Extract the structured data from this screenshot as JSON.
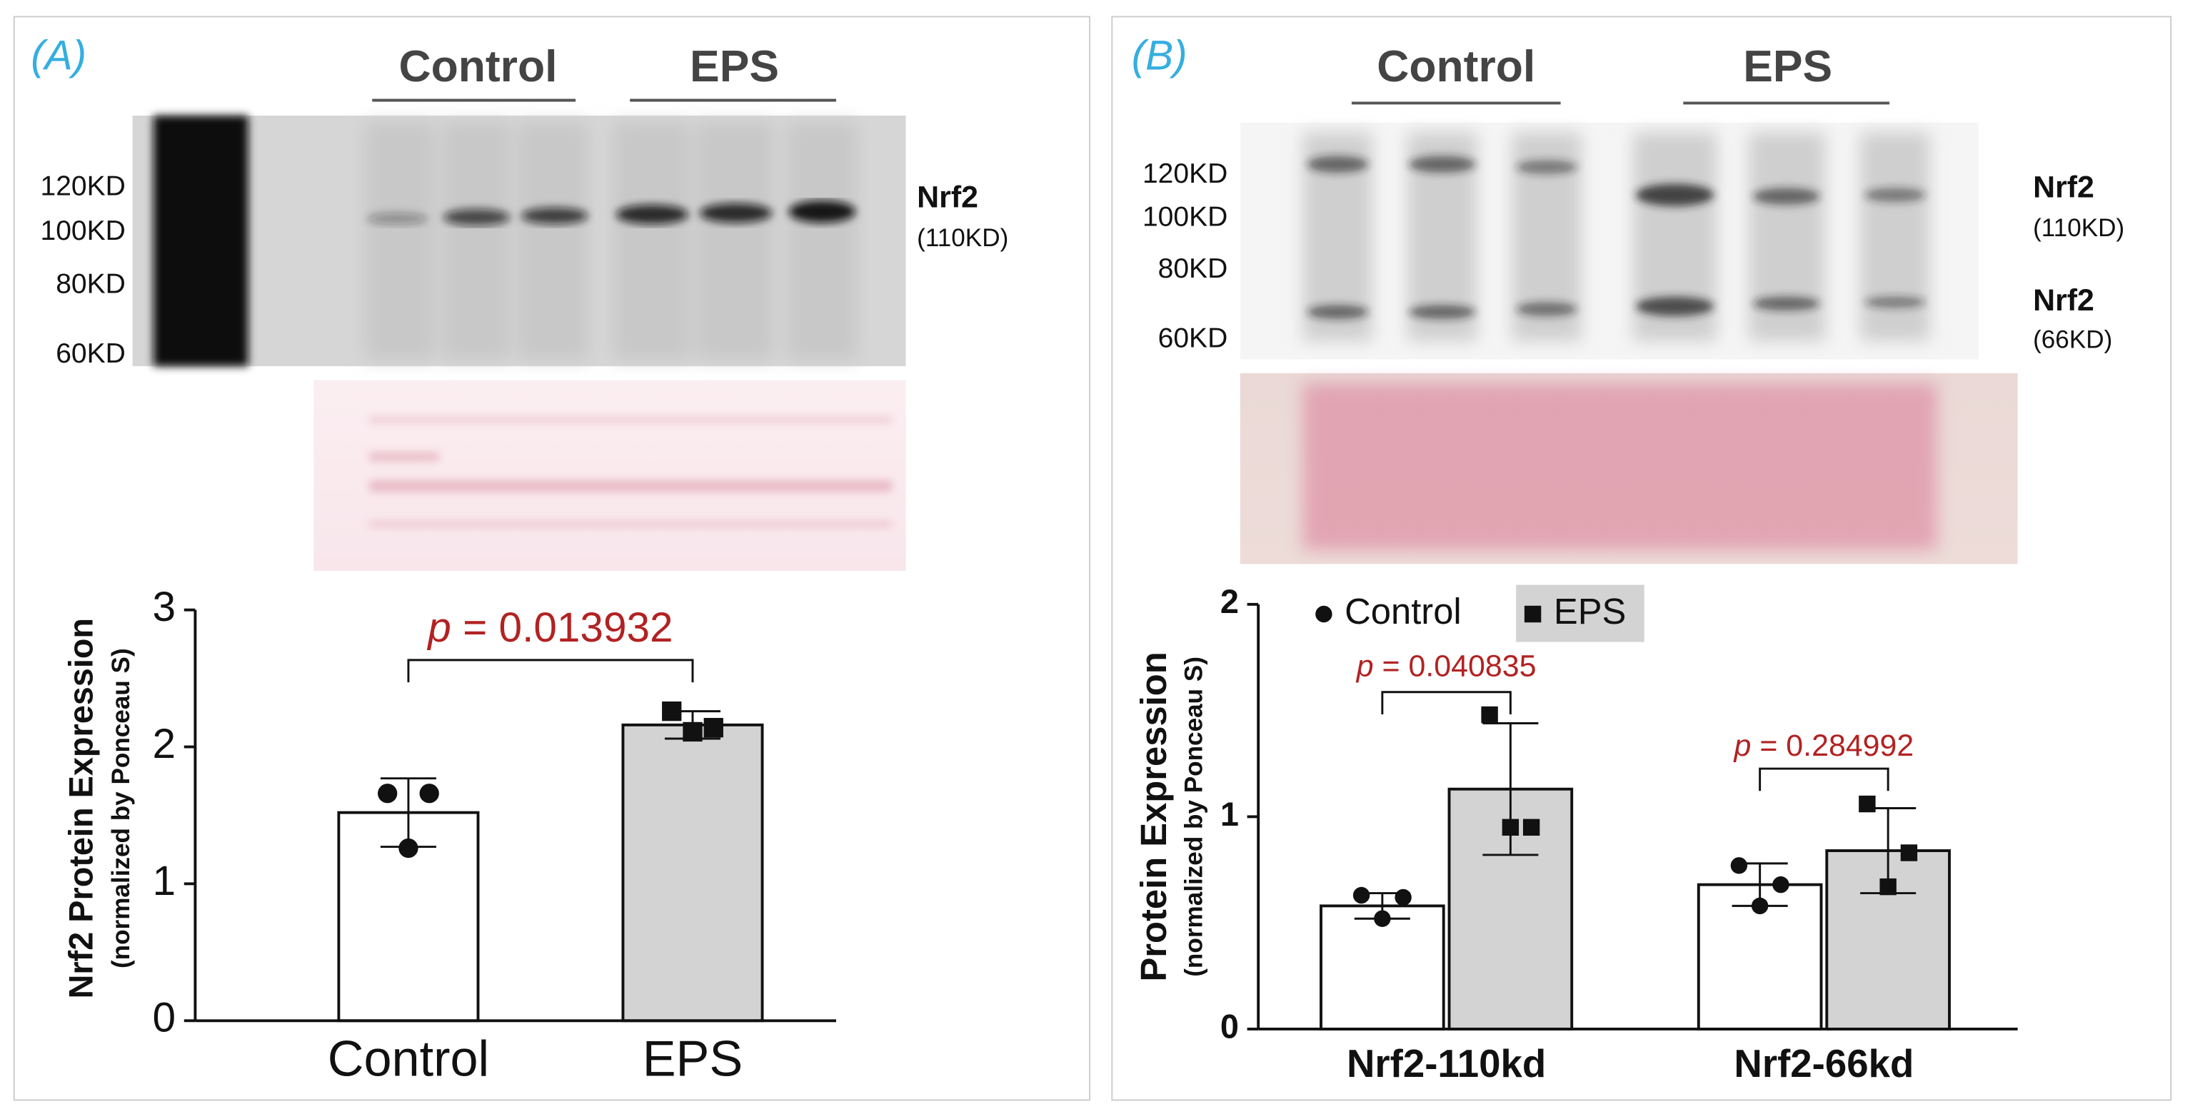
{
  "chart_data": [
    {
      "type": "bar",
      "panel_label": "(A)",
      "ylabel": "Nrf2 Protein Expression",
      "ylabel_sub": "(normalized by Ponceau S)",
      "categories": [
        "Control",
        "EPS"
      ],
      "values": [
        1.52,
        2.16
      ],
      "errors": [
        0.25,
        0.1
      ],
      "points": [
        [
          1.66,
          1.66,
          1.26
        ],
        [
          2.26,
          2.14,
          2.11
        ]
      ],
      "colors": [
        "#ffffff",
        "#d3d3d3"
      ],
      "markers": [
        "circle",
        "square"
      ],
      "ylim": [
        0,
        3
      ],
      "yticks": [
        0,
        1,
        2,
        3
      ],
      "annotations": [
        {
          "italic": "p",
          "text": "= 0.013932"
        }
      ]
    },
    {
      "type": "grouped-bar",
      "panel_label": "(B)",
      "ylabel": "Protein Expression",
      "ylabel_sub": "(normalized by Ponceau S)",
      "categories": [
        "Nrf2-110kd",
        "Nrf2-66kd"
      ],
      "series": [
        {
          "name": "Control",
          "color": "#ffffff",
          "marker": "circle",
          "values": [
            0.58,
            0.68
          ],
          "errors": [
            0.06,
            0.1
          ],
          "points": [
            [
              0.63,
              0.62,
              0.52
            ],
            [
              0.77,
              0.68,
              0.58
            ]
          ]
        },
        {
          "name": "EPS",
          "color": "#d3d3d3",
          "marker": "square",
          "values": [
            1.13,
            0.84
          ],
          "errors": [
            0.31,
            0.2
          ],
          "points": [
            [
              1.48,
              0.95,
              0.95
            ],
            [
              1.06,
              0.83,
              0.67
            ]
          ]
        }
      ],
      "ylim": [
        0,
        2
      ],
      "yticks": [
        0,
        1,
        2
      ],
      "annotations": [
        {
          "italic": "p",
          "text": "= 0.040835"
        },
        {
          "italic": "p",
          "text": "= 0.284992"
        }
      ]
    }
  ],
  "blots": [
    {
      "groups": [
        "Control",
        "EPS"
      ],
      "markers": [
        "120KD",
        "100KD",
        "80KD",
        "60KD"
      ],
      "bands": [
        {
          "name": "Nrf2",
          "size": "(110KD)"
        }
      ]
    },
    {
      "groups": [
        "Control",
        "EPS"
      ],
      "markers": [
        "120KD",
        "100KD",
        "80KD",
        "60KD"
      ],
      "bands": [
        {
          "name": "Nrf2",
          "size": "(110KD)"
        },
        {
          "name": "Nrf2",
          "size": "(66KD)"
        }
      ]
    }
  ]
}
